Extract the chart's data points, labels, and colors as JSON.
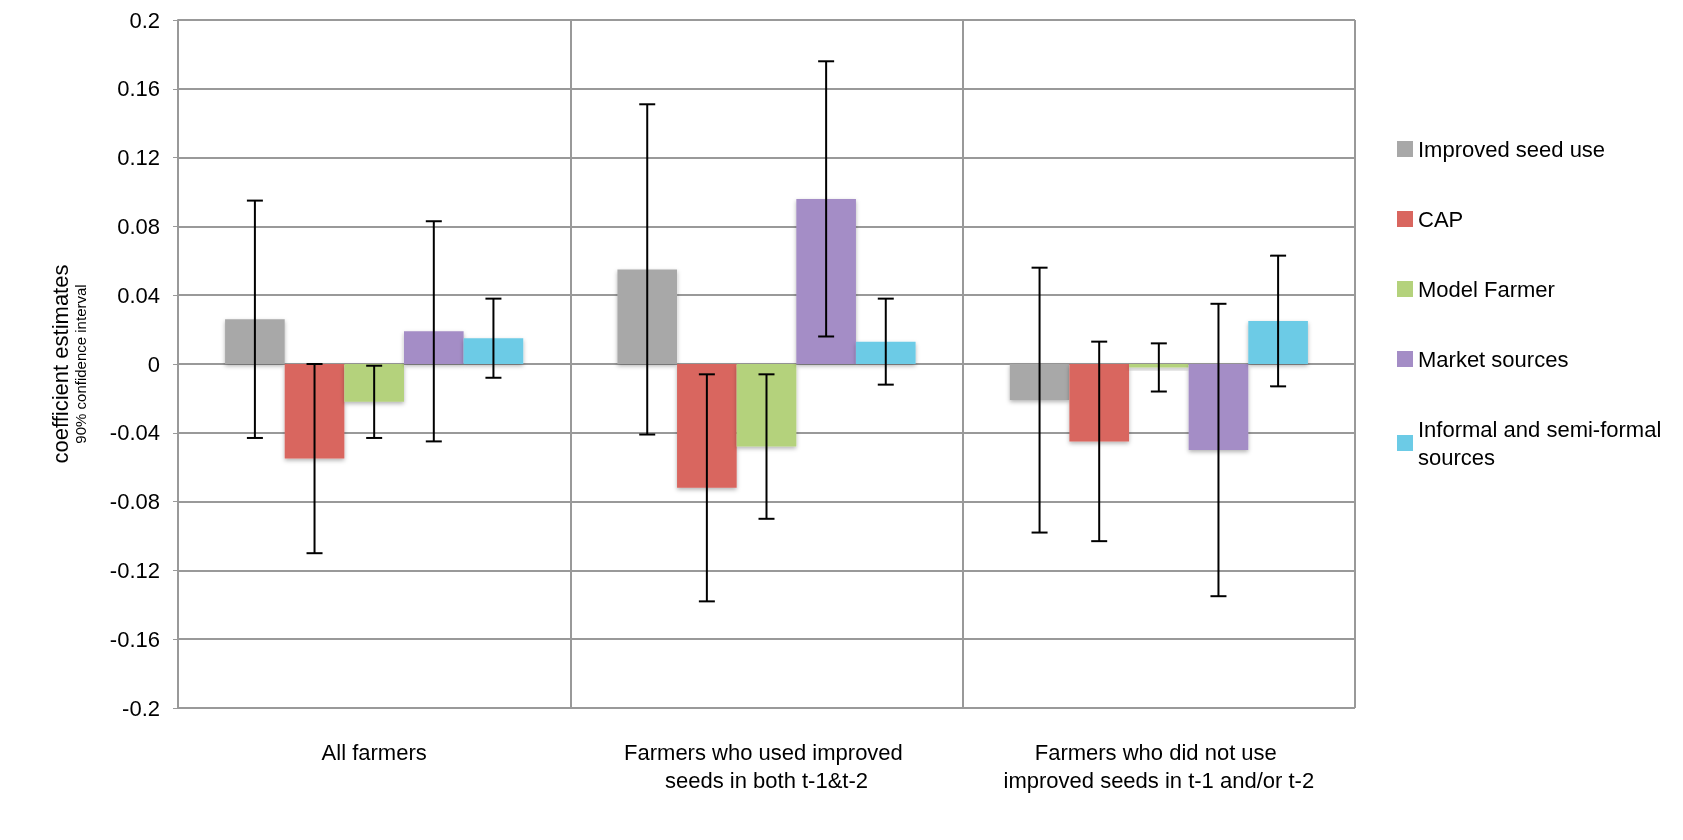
{
  "chart_data": {
    "type": "bar",
    "ylabel": "coefficient estimates\n90% confidence interval",
    "categories": [
      "All farmers",
      "Farmers who used improved seeds in both t-1&t-2",
      "Farmers who did not use improved seeds in t-1 and/or t-2"
    ],
    "series": [
      {
        "name": "Improved seed use",
        "color": "#a8a8a8",
        "values": [
          0.026,
          0.055,
          -0.021
        ],
        "errors": [
          0.069,
          0.096,
          0.077
        ]
      },
      {
        "name": "CAP",
        "color": "#d9665f",
        "values": [
          -0.055,
          -0.072,
          -0.045
        ],
        "errors": [
          0.055,
          0.066,
          0.058
        ]
      },
      {
        "name": "Model Farmer",
        "color": "#b4d27c",
        "values": [
          -0.022,
          -0.048,
          -0.002
        ],
        "errors": [
          0.021,
          0.042,
          0.014
        ]
      },
      {
        "name": "Market sources",
        "color": "#a48dc6",
        "values": [
          0.019,
          0.096,
          -0.05
        ],
        "errors": [
          0.064,
          0.08,
          0.085
        ]
      },
      {
        "name": "Informal and semi-formal sources",
        "color": "#6ccbe6",
        "values": [
          0.015,
          0.013,
          0.025
        ],
        "errors": [
          0.023,
          0.025,
          0.038
        ]
      }
    ],
    "ylim": [
      -0.2,
      0.2
    ],
    "yticks": [
      -0.2,
      -0.16,
      -0.12,
      -0.08,
      -0.04,
      0,
      0.04,
      0.08,
      0.12,
      0.16,
      0.2
    ],
    "grid": true,
    "legend": "right"
  }
}
